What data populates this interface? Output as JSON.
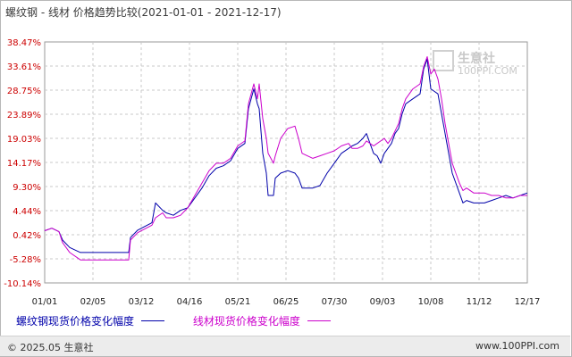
{
  "header": {
    "title": "螺纹钢 - 线材 价格趋势比较(2021-01-01 - 2021-12-17)"
  },
  "watermark": {
    "name": "生意社",
    "url": "100PPI.COM"
  },
  "footer": {
    "copyright": "© 2025.05 生意社",
    "site": "www.100PPI.com"
  },
  "chart_data": {
    "type": "line",
    "title": "螺纹钢 - 线材 价格趋势比较(2021-01-01 - 2021-12-17)",
    "xlabel": "",
    "ylabel": "",
    "x_ticks": [
      "01/01",
      "02/05",
      "03/12",
      "04/16",
      "05/21",
      "06/25",
      "07/30",
      "09/03",
      "10/08",
      "11/12",
      "12/17"
    ],
    "y_ticks": [
      "38.47%",
      "33.61%",
      "28.75%",
      "23.89%",
      "19.03%",
      "14.17%",
      "9.30%",
      "4.44%",
      "0.42%",
      "-5.28%",
      "-10.14%"
    ],
    "ylim": [
      -10.14,
      38.47
    ],
    "grid": true,
    "legend_position": "bottom",
    "series": [
      {
        "name": "螺纹钢现货价格变化幅度",
        "color": "#0000aa",
        "points": [
          [
            0,
            0.4
          ],
          [
            0.02,
            0.9
          ],
          [
            0.04,
            0.2
          ],
          [
            0.05,
            -1.5
          ],
          [
            0.07,
            -3.0
          ],
          [
            0.1,
            -4.0
          ],
          [
            0.15,
            -4.0
          ],
          [
            0.2,
            -4.0
          ],
          [
            0.235,
            -4.0
          ],
          [
            0.24,
            -1.0
          ],
          [
            0.26,
            0.5
          ],
          [
            0.3,
            2.0
          ],
          [
            0.31,
            6.0
          ],
          [
            0.33,
            4.5
          ],
          [
            0.34,
            4.0
          ],
          [
            0.36,
            3.5
          ],
          [
            0.38,
            4.5
          ],
          [
            0.4,
            5.0
          ],
          [
            0.42,
            7.0
          ],
          [
            0.44,
            9.0
          ],
          [
            0.46,
            11.5
          ],
          [
            0.48,
            13.0
          ],
          [
            0.5,
            13.5
          ],
          [
            0.52,
            14.5
          ],
          [
            0.54,
            17.0
          ],
          [
            0.56,
            18.0
          ],
          [
            0.57,
            25.0
          ],
          [
            0.585,
            29.0
          ],
          [
            0.595,
            26.0
          ],
          [
            0.6,
            25.0
          ],
          [
            0.61,
            16.0
          ],
          [
            0.62,
            12.0
          ],
          [
            0.625,
            7.5
          ],
          [
            0.64,
            7.5
          ],
          [
            0.645,
            11.0
          ],
          [
            0.66,
            12.0
          ],
          [
            0.68,
            12.5
          ],
          [
            0.7,
            12.0
          ],
          [
            0.71,
            11.0
          ],
          [
            0.72,
            9.0
          ],
          [
            0.75,
            9.0
          ],
          [
            0.77,
            9.5
          ],
          [
            0.79,
            12.0
          ],
          [
            0.81,
            14.0
          ],
          [
            0.83,
            16.0
          ],
          [
            0.85,
            17.0
          ],
          [
            0.86,
            17.5
          ],
          [
            0.875,
            18.0
          ],
          [
            0.89,
            19.0
          ],
          [
            0.9,
            20.0
          ],
          [
            0.91,
            18.0
          ],
          [
            0.92,
            16.0
          ],
          [
            0.93,
            15.5
          ],
          [
            0.94,
            14.0
          ],
          [
            0.95,
            16.0
          ],
          [
            0.96,
            17.0
          ],
          [
            0.97,
            18.0
          ],
          [
            0.98,
            20.0
          ],
          [
            0.99,
            21.0
          ],
          [
            1.0,
            24.0
          ],
          [
            1.01,
            26.0
          ],
          [
            1.03,
            27.0
          ],
          [
            1.05,
            28.0
          ],
          [
            1.06,
            33.0
          ],
          [
            1.07,
            35.0
          ],
          [
            1.08,
            29.0
          ],
          [
            1.09,
            28.5
          ],
          [
            1.1,
            28.0
          ],
          [
            1.11,
            24.0
          ],
          [
            1.12,
            20.0
          ],
          [
            1.13,
            16.0
          ],
          [
            1.14,
            12.0
          ],
          [
            1.16,
            8.0
          ],
          [
            1.17,
            6.0
          ],
          [
            1.18,
            6.5
          ],
          [
            1.2,
            6.0
          ],
          [
            1.23,
            6.0
          ],
          [
            1.25,
            6.5
          ],
          [
            1.27,
            7.0
          ],
          [
            1.29,
            7.5
          ],
          [
            1.31,
            7.0
          ],
          [
            1.33,
            7.5
          ],
          [
            1.35,
            8.0
          ]
        ]
      },
      {
        "name": "线材现货价格变化幅度",
        "color": "#cc00cc",
        "points": [
          [
            0,
            0.4
          ],
          [
            0.02,
            0.9
          ],
          [
            0.04,
            0.2
          ],
          [
            0.05,
            -2.0
          ],
          [
            0.07,
            -4.0
          ],
          [
            0.1,
            -5.5
          ],
          [
            0.15,
            -5.5
          ],
          [
            0.2,
            -5.5
          ],
          [
            0.235,
            -5.5
          ],
          [
            0.24,
            -1.5
          ],
          [
            0.26,
            0.0
          ],
          [
            0.3,
            1.5
          ],
          [
            0.31,
            3.0
          ],
          [
            0.33,
            4.0
          ],
          [
            0.34,
            3.0
          ],
          [
            0.36,
            3.0
          ],
          [
            0.38,
            3.5
          ],
          [
            0.4,
            5.0
          ],
          [
            0.42,
            7.5
          ],
          [
            0.44,
            10.0
          ],
          [
            0.46,
            12.5
          ],
          [
            0.48,
            14.0
          ],
          [
            0.5,
            14.0
          ],
          [
            0.52,
            15.0
          ],
          [
            0.54,
            17.5
          ],
          [
            0.56,
            18.5
          ],
          [
            0.57,
            26.0
          ],
          [
            0.585,
            30.0
          ],
          [
            0.595,
            27.0
          ],
          [
            0.6,
            30.0
          ],
          [
            0.61,
            23.0
          ],
          [
            0.62,
            19.0
          ],
          [
            0.625,
            16.0
          ],
          [
            0.64,
            14.0
          ],
          [
            0.645,
            15.5
          ],
          [
            0.66,
            19.0
          ],
          [
            0.68,
            21.0
          ],
          [
            0.7,
            21.5
          ],
          [
            0.71,
            19.0
          ],
          [
            0.72,
            16.0
          ],
          [
            0.75,
            15.0
          ],
          [
            0.77,
            15.5
          ],
          [
            0.79,
            16.0
          ],
          [
            0.81,
            16.5
          ],
          [
            0.83,
            17.5
          ],
          [
            0.85,
            18.0
          ],
          [
            0.86,
            17.0
          ],
          [
            0.875,
            17.0
          ],
          [
            0.89,
            17.5
          ],
          [
            0.9,
            18.5
          ],
          [
            0.91,
            18.0
          ],
          [
            0.92,
            17.5
          ],
          [
            0.93,
            18.0
          ],
          [
            0.94,
            18.5
          ],
          [
            0.95,
            19.0
          ],
          [
            0.96,
            18.0
          ],
          [
            0.97,
            19.0
          ],
          [
            0.98,
            20.5
          ],
          [
            0.99,
            22.0
          ],
          [
            1.0,
            25.0
          ],
          [
            1.01,
            27.0
          ],
          [
            1.03,
            29.0
          ],
          [
            1.05,
            30.0
          ],
          [
            1.06,
            33.5
          ],
          [
            1.07,
            35.5
          ],
          [
            1.08,
            32.0
          ],
          [
            1.09,
            33.0
          ],
          [
            1.1,
            31.0
          ],
          [
            1.11,
            27.0
          ],
          [
            1.12,
            22.0
          ],
          [
            1.13,
            18.0
          ],
          [
            1.14,
            14.0
          ],
          [
            1.16,
            10.0
          ],
          [
            1.17,
            8.5
          ],
          [
            1.18,
            9.0
          ],
          [
            1.2,
            8.0
          ],
          [
            1.23,
            8.0
          ],
          [
            1.25,
            7.5
          ],
          [
            1.27,
            7.5
          ],
          [
            1.29,
            7.0
          ],
          [
            1.31,
            7.0
          ],
          [
            1.33,
            7.5
          ],
          [
            1.35,
            7.5
          ]
        ]
      }
    ]
  }
}
